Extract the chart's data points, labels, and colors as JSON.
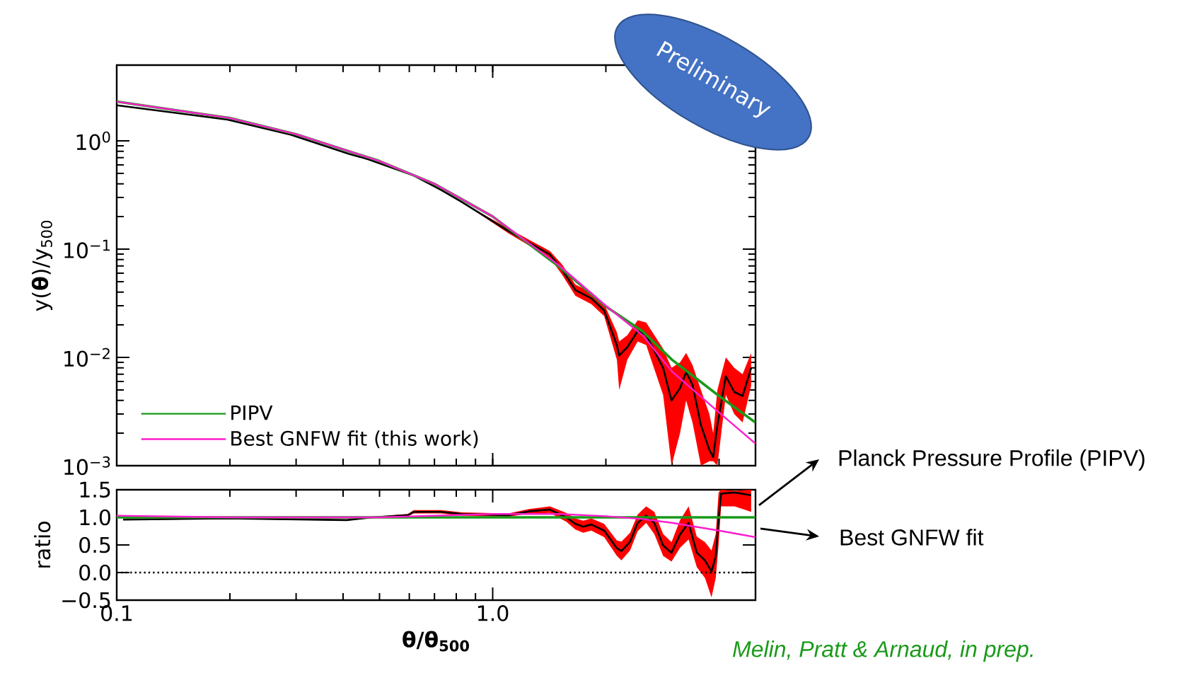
{
  "chart_data": [
    {
      "type": "line",
      "ylabel": "y(**θ**)/y$_{500}$",
      "log": "xy",
      "legend": "bottom left",
      "tick_labels": "y",
      "xlim": [
        0.1,
        5
      ],
      "ylim": [
        0.001,
        5
      ],
      "yticks": [
        {
          "value": 0.001,
          "label": "10$^{−3}$"
        },
        {
          "value": 0.01,
          "label": "10$^{−2}$"
        },
        {
          "value": 0.1,
          "label": "10$^{−1}$"
        },
        {
          "value": 1,
          "label": "10$^{0}$"
        }
      ],
      "annotations": [
        "Preliminary"
      ],
      "series": [
        {
          "color": "#000000",
          "x": [
            0.1,
            0.197,
            0.29,
            0.415,
            0.466,
            0.617,
            0.729,
            0.829,
            1.1,
            1.42,
            1.53,
            1.66,
            1.83,
            1.98,
            2.14,
            2.17,
            2.28,
            2.43,
            2.56,
            2.84,
            2.99,
            3.15,
            3.27,
            3.4,
            3.58,
            3.77,
            3.86,
            3.96,
            4.17,
            4.39,
            4.62,
            4.87
          ],
          "values": [
            2.13,
            1.57,
            1.14,
            0.757,
            0.676,
            0.477,
            0.352,
            0.271,
            0.147,
            0.089,
            0.0646,
            0.0418,
            0.0351,
            0.0271,
            0.0129,
            0.0104,
            0.0124,
            0.0175,
            0.0161,
            0.008,
            0.004,
            0.0052,
            0.0073,
            0.0056,
            0.00237,
            0.0014,
            0.0012,
            0.00237,
            0.0067,
            0.0048,
            0.0044,
            0.008
          ],
          "lower": [
            2.13,
            1.57,
            1.14,
            0.757,
            0.676,
            0.477,
            0.352,
            0.271,
            0.14,
            0.083,
            0.058,
            0.037,
            0.031,
            0.024,
            0.0095,
            0.005,
            0.0095,
            0.014,
            0.013,
            0.0045,
            0.001,
            0.002,
            0.004,
            0.0025,
            0.001,
            0.0011,
            0.0011,
            0.001,
            0.0045,
            0.003,
            0.0025,
            0.0055
          ],
          "upper": [
            2.13,
            1.57,
            1.14,
            0.757,
            0.676,
            0.477,
            0.352,
            0.271,
            0.155,
            0.096,
            0.072,
            0.047,
            0.04,
            0.031,
            0.017,
            0.014,
            0.016,
            0.022,
            0.021,
            0.012,
            0.008,
            0.009,
            0.011,
            0.0085,
            0.005,
            0.003,
            0.002,
            0.005,
            0.01,
            0.008,
            0.007,
            0.011
          ]
        },
        {
          "name": "PIPV",
          "color": "#1a9a1a",
          "x": [
            0.1,
            0.2,
            0.3,
            0.5,
            0.7,
            1,
            1.5,
            2,
            2.5,
            3,
            4,
            5
          ],
          "values": [
            2.3,
            1.62,
            1.15,
            0.65,
            0.4,
            0.2,
            0.069,
            0.0295,
            0.0175,
            0.0095,
            0.0044,
            0.0025
          ]
        },
        {
          "name": "Best GNFW fit (this work)",
          "color": "#ff1dce",
          "x": [
            0.1,
            0.2,
            0.3,
            0.5,
            0.7,
            1,
            1.5,
            2,
            2.5,
            3,
            4,
            5
          ],
          "values": [
            2.3,
            1.62,
            1.15,
            0.65,
            0.4,
            0.2,
            0.071,
            0.03,
            0.0161,
            0.0074,
            0.0031,
            0.0016
          ]
        }
      ]
    },
    {
      "type": "line",
      "xlabel": "θ/θ$_{500}$",
      "ylabel": "ratio",
      "log": "x",
      "xlim": [
        0.1,
        5
      ],
      "ylim": [
        -0.5,
        1.5
      ],
      "xticks": [
        0.1,
        {
          "value": 1,
          "label": "1.0"
        }
      ],
      "yticks": [
        {
          "value": -0.5,
          "label": "−0.5"
        },
        {
          "value": 0,
          "label": "0.0"
        },
        0.5,
        {
          "value": 1,
          "label": "1.0"
        },
        1.5
      ],
      "ref_lines": [
        {
          "axis": "y",
          "value": 0,
          "color": "#000000",
          "line_style": "dotted"
        }
      ],
      "annotations": [
        "Planck Pressure Profile (PIPV)",
        "Best GNFW fit",
        "Melin, Pratt & Arnaud, in prep."
      ],
      "series": [
        {
          "color": "#000000",
          "x": [
            0.104,
            0.197,
            0.409,
            0.48,
            0.595,
            0.617,
            0.729,
            0.829,
            1.1,
            1.25,
            1.42,
            1.57,
            1.66,
            1.74,
            1.83,
            1.98,
            2.14,
            2.2,
            2.32,
            2.43,
            2.56,
            2.69,
            2.84,
            2.99,
            3.15,
            3.32,
            3.49,
            3.67,
            3.82,
            3.92,
            3.99,
            4.05,
            4.4,
            4.87
          ],
          "values": [
            0.96,
            0.98,
            0.95,
            1.0,
            1.04,
            1.1,
            1.1,
            1.06,
            1.04,
            1.11,
            1.14,
            1.0,
            0.88,
            0.83,
            0.87,
            0.76,
            0.44,
            0.39,
            0.56,
            0.9,
            1.03,
            0.9,
            0.49,
            0.36,
            0.69,
            0.9,
            0.36,
            0.22,
            0.02,
            0.29,
            0.96,
            1.43,
            1.45,
            1.4
          ],
          "lower": [
            0.95,
            0.97,
            0.94,
            0.99,
            1.02,
            1.07,
            1.07,
            1.03,
            1.01,
            1.07,
            1.08,
            0.92,
            0.78,
            0.72,
            0.76,
            0.64,
            0.3,
            0.22,
            0.4,
            0.75,
            0.9,
            0.7,
            0.3,
            0.2,
            0.45,
            0.6,
            0.1,
            -0.1,
            -0.45,
            -0.1,
            0.5,
            1.2,
            1.2,
            1.1
          ],
          "upper": [
            0.97,
            0.99,
            0.96,
            1.01,
            1.06,
            1.13,
            1.13,
            1.09,
            1.07,
            1.15,
            1.2,
            1.08,
            0.98,
            0.94,
            0.98,
            0.88,
            0.58,
            0.56,
            0.72,
            1.05,
            1.2,
            1.1,
            0.7,
            0.55,
            0.95,
            1.2,
            0.65,
            0.55,
            0.4,
            0.7,
            1.45,
            1.5,
            1.48,
            1.5
          ]
        },
        {
          "color": "#1a9a1a",
          "x": [
            0.1,
            5
          ],
          "values": [
            1.0,
            1.0
          ]
        },
        {
          "color": "#ff1dce",
          "x": [
            0.1,
            0.2,
            0.5,
            1,
            1.5,
            2,
            2.5,
            3,
            4,
            5
          ],
          "values": [
            1.03,
            1.0,
            1.0,
            1.06,
            1.06,
            1.02,
            0.97,
            0.9,
            0.76,
            0.64
          ]
        }
      ]
    }
  ]
}
